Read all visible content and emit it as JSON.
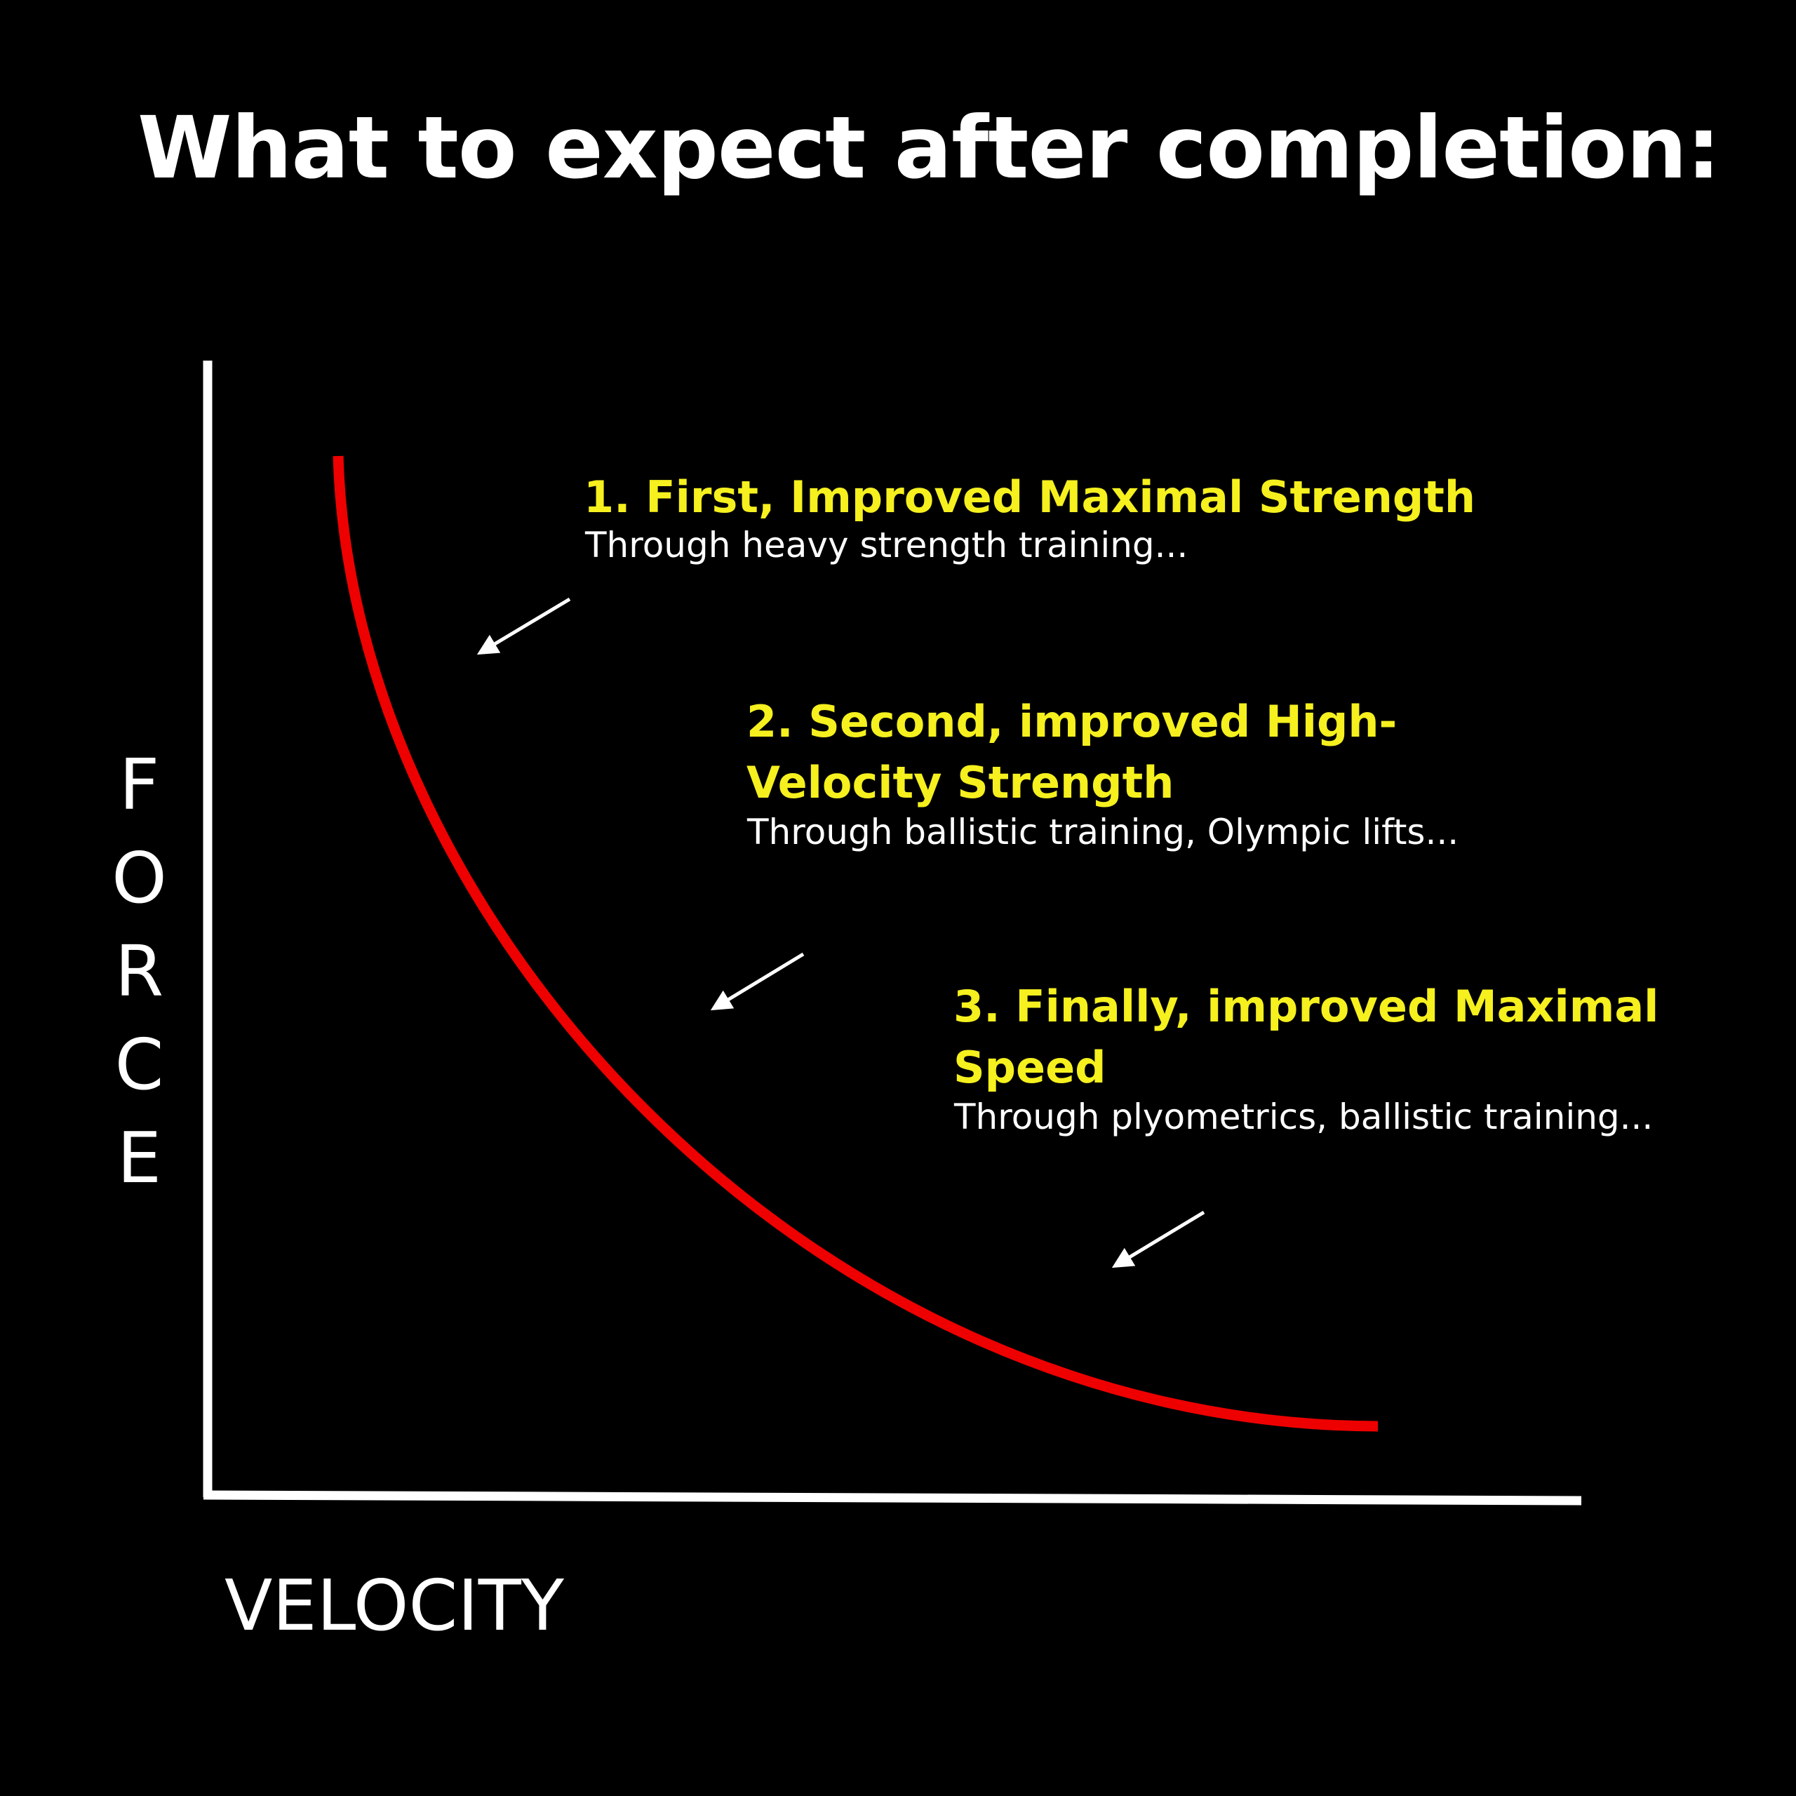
{
  "header": {
    "title": "What to expect after completion:"
  },
  "axes": {
    "y_label": "FORCE",
    "x_label": "VELOCITY"
  },
  "annotations": [
    {
      "heading": "1. First, Improved Maximal Strength",
      "text": "Through heavy strength training..."
    },
    {
      "heading": "2. Second, improved High-Velocity Strength",
      "text": "Through ballistic training, Olympic lifts..."
    },
    {
      "heading": "3. Finally, improved Maximal Speed",
      "text": "Through plyometrics, ballistic training..."
    }
  ]
}
